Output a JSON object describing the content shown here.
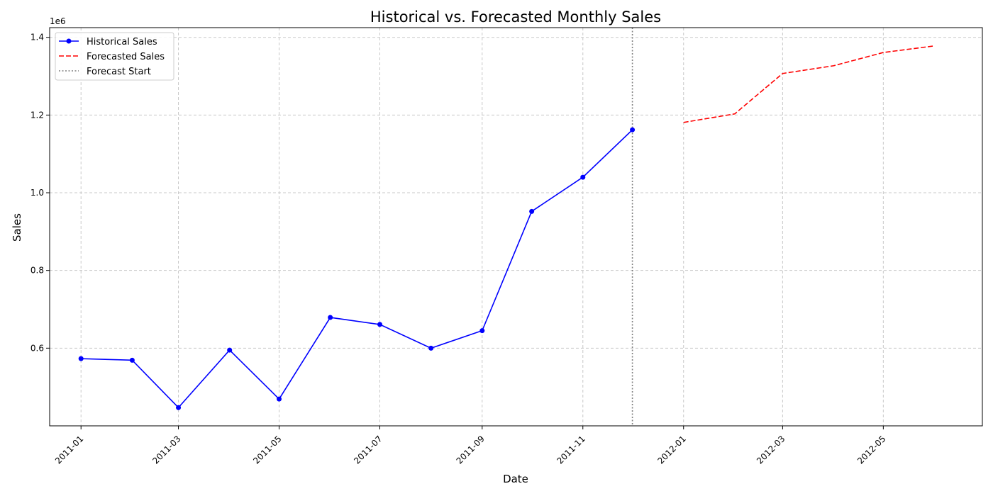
{
  "chart_data": {
    "type": "line",
    "title": "Historical vs. Forecasted Monthly Sales",
    "xlabel": "Date",
    "ylabel": "Sales",
    "y_offset_label": "1e6",
    "x_tick_labels": [
      "2011-01",
      "2011-03",
      "2011-05",
      "2011-07",
      "2011-09",
      "2011-11",
      "2012-01",
      "2012-03",
      "2012-05"
    ],
    "y_tick_labels": [
      "0.6",
      "0.8",
      "1.0",
      "1.2",
      "1.4"
    ],
    "xlim": [
      "2010-12-13",
      "2012-06-30"
    ],
    "ylim": [
      0.4,
      1.425
    ],
    "y_unit_multiplier": 1000000,
    "grid": true,
    "legend_position": "top-left",
    "series": [
      {
        "name": "Historical Sales",
        "color": "#0000ff",
        "style": "solid",
        "marker": "circle",
        "points": [
          {
            "x": "2011-01-01",
            "y": 0.573
          },
          {
            "x": "2011-02-01",
            "y": 0.569
          },
          {
            "x": "2011-03-01",
            "y": 0.447
          },
          {
            "x": "2011-04-01",
            "y": 0.595
          },
          {
            "x": "2011-05-01",
            "y": 0.469
          },
          {
            "x": "2011-06-01",
            "y": 0.679
          },
          {
            "x": "2011-07-01",
            "y": 0.661
          },
          {
            "x": "2011-08-01",
            "y": 0.6
          },
          {
            "x": "2011-09-01",
            "y": 0.645
          },
          {
            "x": "2011-10-01",
            "y": 0.952
          },
          {
            "x": "2011-11-01",
            "y": 1.04
          },
          {
            "x": "2011-12-01",
            "y": 1.162
          }
        ]
      },
      {
        "name": "Forecasted Sales",
        "color": "#ff0000",
        "style": "dashed",
        "marker": "none",
        "points": [
          {
            "x": "2012-01-01",
            "y": 1.181
          },
          {
            "x": "2012-02-01",
            "y": 1.203
          },
          {
            "x": "2012-03-01",
            "y": 1.307
          },
          {
            "x": "2012-04-01",
            "y": 1.327
          },
          {
            "x": "2012-05-01",
            "y": 1.361
          },
          {
            "x": "2012-06-01",
            "y": 1.378
          }
        ]
      }
    ],
    "reference_lines": [
      {
        "name": "Forecast Start",
        "x": "2011-12-01",
        "color": "#808080",
        "style": "dotted"
      }
    ]
  }
}
